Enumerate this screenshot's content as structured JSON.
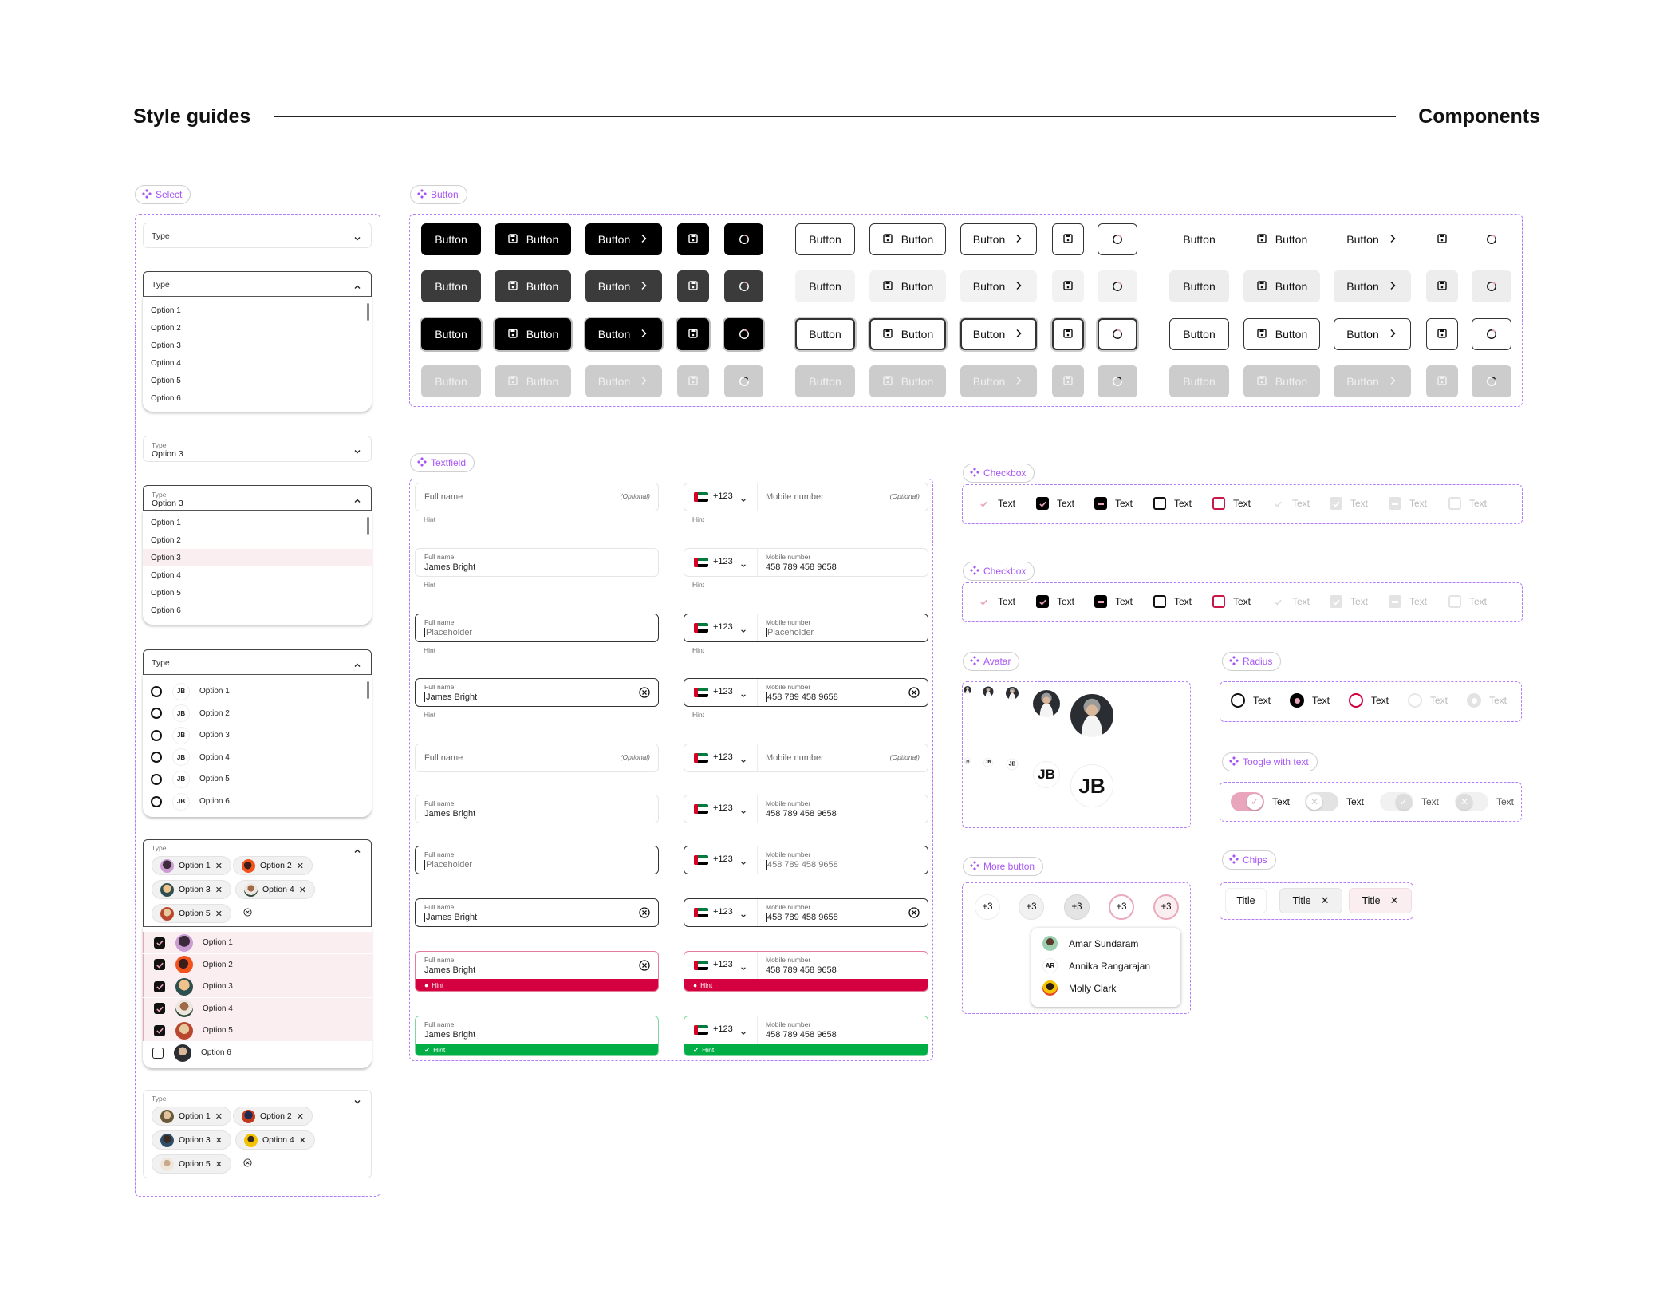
{
  "header": {
    "left_title": "Style guides",
    "right_title": "Components"
  },
  "colors": {
    "accent": "#a855f7",
    "pink": "#e8a5bb",
    "error": "#d4003f",
    "success": "#00ae45",
    "highlight": "#fbeef1"
  },
  "sections": {
    "select": "Select",
    "button": "Button",
    "textfield": "Textfield",
    "checkbox_1": "Checkbox",
    "checkbox_2": "Checkbox",
    "avatar": "Avatar",
    "radius": "Radius",
    "toggle": "Toogle with text",
    "more_button": "More button",
    "chips": "Chips"
  },
  "select": {
    "label": "Type",
    "selected_value": "Option 3",
    "options": [
      "Option 1",
      "Option 2",
      "Option 3",
      "Option 4",
      "Option 5",
      "Option 6"
    ],
    "avatar_initials": "JB",
    "chips": [
      "Option 1",
      "Option 2",
      "Option 3",
      "Option 4",
      "Option 5"
    ],
    "checked": [
      true,
      true,
      true,
      true,
      true,
      false
    ]
  },
  "buttons": {
    "label": "Button",
    "icons": [
      "save-icon",
      "chevron-right-icon",
      "spinner-icon"
    ]
  },
  "textfield": {
    "full_name_label": "Full name",
    "mobile_label": "Mobile number",
    "optional": "(Optional)",
    "hint": "Hint",
    "name_value": "James Bright",
    "mobile_value": "458 789 458 9658",
    "placeholder": "Placeholder",
    "country_code": "+123"
  },
  "checkbox": {
    "label": "Text"
  },
  "avatar": {
    "initials": "JB"
  },
  "radius": {
    "label": "Text"
  },
  "toggle": {
    "label": "Text"
  },
  "more_button": {
    "count": "+3",
    "people": [
      {
        "name": "Amar Sundaram"
      },
      {
        "name": "Annika Rangarajan",
        "initials": "AR"
      },
      {
        "name": "Molly Clark"
      }
    ]
  },
  "chips": {
    "items": [
      "Title",
      "Title",
      "Title"
    ]
  }
}
